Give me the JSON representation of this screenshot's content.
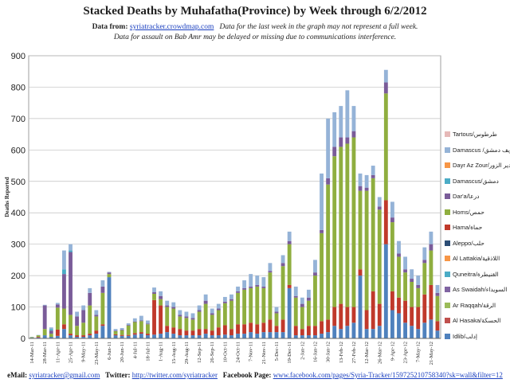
{
  "header": {
    "title": "Stacked Deaths by Muhafatha(Province) by Week through 6/2/2012",
    "data_from_label": "Data from:",
    "data_from_link": "syriatracker.crowdmap.com",
    "note1": "Data for the last week in the graph may not represent a full week.",
    "note2": "Data for assault on Bab Amr may be delayed or missing due to communications interference."
  },
  "footer": {
    "email_label": "eMail:",
    "email": "syriatracker@gmail.com",
    "twitter_label": "Twitter:",
    "twitter": "http://twitter.com/syriatracker",
    "facebook_label": "Facebook Page:",
    "facebook": "www.facebook.com/pages/Syria-Tracker/159725210758340?sk=wall&filter=12"
  },
  "chart_data": {
    "type": "bar",
    "stacked": true,
    "ylabel": "Deaths Reported",
    "ylim": [
      0,
      900
    ],
    "yticks": [
      0,
      100,
      200,
      300,
      400,
      500,
      600,
      700,
      800,
      900
    ],
    "grid": true,
    "legend_position": "right",
    "categories": [
      "14-Mar-11",
      "21-Mar-11",
      "28-Mar-11",
      "4-Apr-11",
      "11-Apr-11",
      "18-Apr-11",
      "25-Apr-11",
      "2-May-11",
      "9-May-11",
      "16-May-11",
      "23-May-11",
      "30-May-11",
      "6-Jun-11",
      "13-Jun-11",
      "20-Jun-11",
      "27-Jun-11",
      "4-Jul-11",
      "11-Jul-11",
      "18-Jul-11",
      "25-Jul-11",
      "1-Aug-11",
      "8-Aug-11",
      "15-Aug-11",
      "22-Aug-11",
      "29-Aug-11",
      "5-Sep-11",
      "12-Sep-11",
      "19-Sep-11",
      "26-Sep-11",
      "3-Oct-11",
      "10-Oct-11",
      "17-Oct-11",
      "24-Oct-11",
      "31-Oct-11",
      "7-Nov-11",
      "14-Nov-11",
      "21-Nov-11",
      "28-Nov-11",
      "5-Dec-11",
      "12-Dec-11",
      "19-Dec-11",
      "26-Dec-11",
      "2-Jan-12",
      "9-Jan-12",
      "16-Jan-12",
      "23-Jan-12",
      "30-Jan-12",
      "6-Feb-12",
      "13-Feb-12",
      "20-Feb-12",
      "27-Feb-12",
      "5-Mar-12",
      "12-Mar-12",
      "19-Mar-12",
      "26-Mar-12",
      "2-Apr-12",
      "9-Apr-12",
      "16-Apr-12",
      "23-Apr-12",
      "30-Apr-12",
      "7-May-12",
      "14-May-12",
      "21-May-12",
      "28-May-12"
    ],
    "category_labels_shown": [
      "14-Mar-11",
      "28-Mar-11",
      "11-Apr-11",
      "25-Apr-11",
      "9-May-11",
      "23-May-11",
      "6-Jun-11",
      "20-Jun-11",
      "4-Jul-11",
      "18-Jul-11",
      "1-Aug-11",
      "15-Aug-11",
      "29-Aug-11",
      "12-Sep-11",
      "26-Sep-11",
      "10-Oct-11",
      "24-Oct-11",
      "7-Nov-11",
      "21-Nov-11",
      "5-Dec-11",
      "19-Dec-11",
      "2-Jan-12",
      "16-Jan-12",
      "30-Jan-12",
      "13-Feb-12",
      "27-Feb-12",
      "12-Mar-12",
      "26-Mar-12",
      "9-Apr-12",
      "23-Apr-12",
      "7-May-12",
      "21-May-12"
    ],
    "series": [
      {
        "name": "Idlib/إدلب",
        "color": "#4f81bd",
        "values": [
          2,
          3,
          10,
          5,
          8,
          30,
          10,
          5,
          5,
          10,
          15,
          40,
          195,
          10,
          8,
          8,
          12,
          15,
          10,
          12,
          15,
          20,
          15,
          10,
          10,
          10,
          10,
          15,
          10,
          10,
          12,
          10,
          15,
          15,
          20,
          15,
          20,
          20,
          20,
          20,
          160,
          10,
          10,
          10,
          10,
          15,
          20,
          40,
          30,
          40,
          50,
          200,
          30,
          30,
          40,
          300,
          90,
          80,
          50,
          40,
          30,
          50,
          60,
          25
        ]
      },
      {
        "name": "Al Hasaka/الحسكة",
        "color": "#c0504d",
        "values": [
          0,
          0,
          0,
          0,
          0,
          0,
          0,
          0,
          0,
          0,
          0,
          0,
          0,
          0,
          0,
          0,
          0,
          0,
          0,
          0,
          0,
          0,
          0,
          0,
          0,
          0,
          0,
          0,
          0,
          0,
          0,
          0,
          0,
          0,
          0,
          0,
          0,
          0,
          0,
          0,
          0,
          0,
          0,
          0,
          0,
          0,
          0,
          0,
          0,
          0,
          0,
          0,
          0,
          0,
          0,
          0,
          0,
          0,
          0,
          0,
          0,
          0,
          0,
          0
        ]
      },
      {
        "name": "Ar Raqqah/الرقة",
        "color": "#9bbb59",
        "values": [
          0,
          0,
          0,
          0,
          0,
          0,
          0,
          0,
          0,
          0,
          0,
          0,
          0,
          0,
          0,
          0,
          0,
          0,
          0,
          0,
          0,
          0,
          0,
          0,
          0,
          0,
          0,
          0,
          0,
          0,
          0,
          0,
          0,
          0,
          0,
          0,
          0,
          0,
          0,
          0,
          0,
          0,
          0,
          0,
          0,
          0,
          0,
          0,
          0,
          0,
          0,
          0,
          0,
          0,
          0,
          0,
          0,
          0,
          0,
          0,
          0,
          0,
          0,
          0
        ]
      },
      {
        "name": "As Swaidah/السويداء",
        "color": "#8064a2",
        "values": [
          0,
          0,
          0,
          0,
          0,
          0,
          0,
          0,
          0,
          0,
          0,
          0,
          0,
          0,
          0,
          0,
          0,
          0,
          0,
          0,
          0,
          0,
          0,
          0,
          0,
          0,
          0,
          0,
          0,
          0,
          0,
          0,
          0,
          0,
          0,
          0,
          0,
          0,
          0,
          0,
          0,
          0,
          0,
          0,
          0,
          0,
          0,
          0,
          0,
          0,
          0,
          0,
          0,
          0,
          0,
          0,
          0,
          0,
          0,
          0,
          0,
          0,
          0,
          0
        ]
      },
      {
        "name": "Quneitra/القنيطرة",
        "color": "#4bacc6",
        "values": [
          0,
          0,
          0,
          0,
          0,
          0,
          0,
          0,
          0,
          0,
          0,
          0,
          0,
          0,
          0,
          0,
          0,
          0,
          0,
          0,
          0,
          0,
          0,
          0,
          0,
          0,
          0,
          0,
          0,
          0,
          0,
          0,
          0,
          0,
          0,
          0,
          0,
          0,
          0,
          0,
          0,
          0,
          0,
          0,
          0,
          0,
          0,
          0,
          0,
          0,
          0,
          0,
          0,
          0,
          0,
          0,
          0,
          0,
          0,
          0,
          0,
          0,
          0,
          0
        ]
      },
      {
        "name": "Al Lattakia/اللاذقية",
        "color": "#f79646",
        "values": [
          0,
          0,
          0,
          0,
          0,
          0,
          0,
          0,
          0,
          0,
          0,
          0,
          0,
          0,
          0,
          0,
          0,
          0,
          0,
          0,
          0,
          0,
          0,
          0,
          0,
          0,
          0,
          0,
          0,
          0,
          0,
          0,
          0,
          0,
          0,
          0,
          0,
          0,
          0,
          0,
          0,
          0,
          0,
          0,
          0,
          0,
          0,
          0,
          0,
          0,
          0,
          0,
          0,
          0,
          0,
          0,
          0,
          0,
          0,
          0,
          0,
          0,
          0,
          0
        ]
      },
      {
        "name": "Aleppo/حلب",
        "color": "#2c4d75",
        "values": [
          0,
          0,
          0,
          0,
          0,
          0,
          0,
          0,
          0,
          0,
          0,
          0,
          0,
          0,
          0,
          0,
          0,
          0,
          0,
          0,
          0,
          0,
          0,
          0,
          0,
          0,
          0,
          0,
          0,
          0,
          0,
          0,
          0,
          0,
          0,
          0,
          0,
          0,
          0,
          0,
          0,
          0,
          0,
          0,
          0,
          0,
          0,
          0,
          0,
          0,
          0,
          0,
          0,
          0,
          0,
          0,
          0,
          0,
          0,
          0,
          0,
          0,
          0,
          0
        ]
      },
      {
        "name": "Hama/حماة",
        "color": "#c0392b",
        "values": [
          0,
          2,
          0,
          0,
          20,
          15,
          5,
          5,
          5,
          5,
          10,
          5,
          0,
          3,
          3,
          3,
          5,
          5,
          5,
          110,
          90,
          20,
          20,
          20,
          15,
          15,
          20,
          15,
          15,
          25,
          30,
          20,
          30,
          30,
          30,
          30,
          30,
          40,
          20,
          40,
          10,
          30,
          20,
          30,
          30,
          40,
          40,
          60,
          80,
          60,
          50,
          20,
          60,
          120,
          70,
          140,
          60,
          50,
          70,
          60,
          70,
          90,
          110,
          30
        ]
      },
      {
        "name": "Homs/حمص",
        "color": "#8fae3f",
        "values": [
          2,
          5,
          20,
          10,
          70,
          50,
          60,
          30,
          40,
          90,
          45,
          100,
          10,
          10,
          15,
          30,
          35,
          35,
          30,
          20,
          20,
          60,
          60,
          40,
          40,
          35,
          55,
          80,
          50,
          55,
          70,
          90,
          100,
          110,
          110,
          120,
          110,
          150,
          40,
          170,
          130,
          90,
          70,
          80,
          160,
          280,
          430,
          480,
          500,
          520,
          540,
          250,
          380,
          360,
          300,
          340,
          220,
          130,
          90,
          80,
          60,
          100,
          110,
          80
        ]
      },
      {
        "name": "Dar'a/درعا",
        "color": "#7a5c99",
        "values": [
          0,
          0,
          75,
          10,
          10,
          110,
          200,
          30,
          40,
          40,
          5,
          20,
          5,
          2,
          2,
          2,
          2,
          2,
          2,
          5,
          10,
          5,
          5,
          5,
          5,
          5,
          5,
          10,
          5,
          5,
          5,
          5,
          5,
          5,
          5,
          5,
          5,
          5,
          5,
          10,
          10,
          5,
          10,
          10,
          10,
          10,
          20,
          30,
          30,
          20,
          20,
          15,
          10,
          10,
          10,
          35,
          15,
          10,
          10,
          10,
          10,
          10,
          20,
          10
        ]
      },
      {
        "name": "Damascus/دمشق",
        "color": "#4bacc6",
        "values": [
          0,
          0,
          0,
          5,
          0,
          15,
          5,
          0,
          0,
          0,
          0,
          0,
          0,
          0,
          0,
          0,
          0,
          0,
          0,
          0,
          0,
          0,
          0,
          0,
          0,
          0,
          0,
          0,
          0,
          0,
          0,
          0,
          0,
          0,
          0,
          0,
          0,
          0,
          0,
          0,
          0,
          0,
          0,
          0,
          0,
          0,
          0,
          0,
          0,
          0,
          0,
          0,
          0,
          0,
          0,
          0,
          0,
          0,
          0,
          0,
          0,
          0,
          0,
          0
        ]
      },
      {
        "name": "Dayr Az Zour/دير الزور",
        "color": "#f79646",
        "values": [
          0,
          0,
          0,
          0,
          0,
          0,
          0,
          0,
          0,
          0,
          0,
          0,
          0,
          0,
          0,
          0,
          0,
          0,
          0,
          0,
          0,
          0,
          0,
          0,
          0,
          0,
          0,
          0,
          0,
          0,
          0,
          0,
          0,
          0,
          0,
          0,
          0,
          0,
          0,
          0,
          0,
          0,
          0,
          0,
          0,
          0,
          0,
          0,
          0,
          0,
          0,
          0,
          0,
          0,
          0,
          0,
          0,
          0,
          0,
          0,
          0,
          0,
          0,
          0
        ]
      },
      {
        "name": "Damascus /ريف دمشق",
        "color": "#95b3d7",
        "values": [
          1,
          1,
          2,
          5,
          5,
          60,
          20,
          15,
          15,
          15,
          15,
          20,
          2,
          5,
          5,
          5,
          10,
          15,
          10,
          15,
          15,
          15,
          15,
          15,
          15,
          15,
          15,
          20,
          15,
          15,
          15,
          15,
          15,
          25,
          40,
          30,
          30,
          25,
          15,
          25,
          30,
          30,
          20,
          25,
          40,
          180,
          190,
          110,
          100,
          150,
          80,
          40,
          40,
          30,
          30,
          40,
          50,
          40,
          40,
          30,
          30,
          40,
          40,
          25
        ]
      },
      {
        "name": "Tartous/طرطوس",
        "color": "#e6b9b8",
        "values": [
          0,
          0,
          0,
          0,
          0,
          0,
          0,
          0,
          0,
          0,
          0,
          0,
          0,
          0,
          0,
          0,
          0,
          0,
          0,
          0,
          0,
          0,
          0,
          0,
          0,
          0,
          0,
          0,
          0,
          0,
          0,
          0,
          0,
          0,
          0,
          0,
          0,
          0,
          0,
          0,
          0,
          0,
          0,
          0,
          0,
          0,
          0,
          0,
          0,
          0,
          0,
          0,
          0,
          0,
          0,
          0,
          0,
          0,
          0,
          0,
          0,
          0,
          0,
          0
        ]
      }
    ]
  }
}
